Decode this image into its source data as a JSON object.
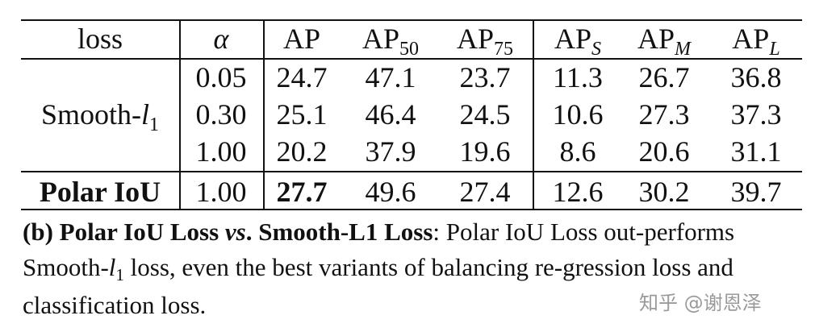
{
  "table": {
    "headers": {
      "loss": "loss",
      "alpha": "α",
      "ap": "AP",
      "ap50_base": "AP",
      "ap50_sub": "50",
      "ap75_base": "AP",
      "ap75_sub": "75",
      "aps_base": "AP",
      "aps_sub": "S",
      "apm_base": "AP",
      "apm_sub": "M",
      "apl_base": "AP",
      "apl_sub": "L"
    },
    "smooth_label_base": "Smooth-",
    "smooth_label_var": "l",
    "smooth_label_sub": "1",
    "rows": [
      {
        "alpha": "0.05",
        "ap": "24.7",
        "ap50": "47.1",
        "ap75": "23.7",
        "aps": "11.3",
        "apm": "26.7",
        "apl": "36.8"
      },
      {
        "alpha": "0.30",
        "ap": "25.1",
        "ap50": "46.4",
        "ap75": "24.5",
        "aps": "10.6",
        "apm": "27.3",
        "apl": "37.3"
      },
      {
        "alpha": "1.00",
        "ap": "20.2",
        "ap50": "37.9",
        "ap75": "19.6",
        "aps": "8.6",
        "apm": "20.6",
        "apl": "31.1"
      }
    ],
    "polar": {
      "loss": "Polar IoU",
      "alpha": "1.00",
      "ap": "27.7",
      "ap50": "49.6",
      "ap75": "27.4",
      "aps": "12.6",
      "apm": "30.2",
      "apl": "39.7"
    }
  },
  "caption": {
    "bold_prefix": "(b) Polar IoU Loss ",
    "bold_vs": "vs",
    "bold_dot": ".",
    "bold_suffix": " Smooth-L1 Loss",
    "colon": ":",
    "text_a": " Polar IoU Loss out-performs Smooth-",
    "var": "l",
    "sub": "1",
    "text_b": " loss, even the best variants of balancing re-gression loss and classification loss."
  },
  "watermark": "知乎 @谢恩泽"
}
